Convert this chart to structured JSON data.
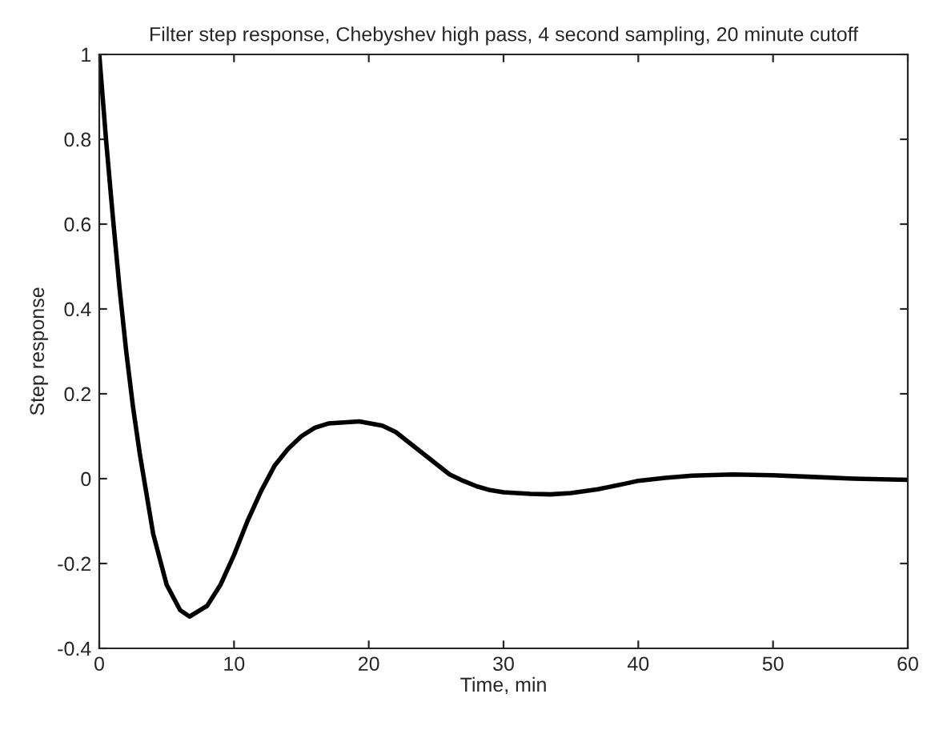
{
  "chart_data": {
    "type": "line",
    "title": "Filter step response, Chebyshev high pass, 4 second sampling, 20 minute cutoff",
    "xlabel": "Time, min",
    "ylabel": "Step response",
    "xlim": [
      0,
      60
    ],
    "ylim": [
      -0.4,
      1
    ],
    "xticks": [
      0,
      10,
      20,
      30,
      40,
      50,
      60
    ],
    "yticks": [
      {
        "value": -0.4,
        "label": "-0.4"
      },
      {
        "value": -0.2,
        "label": "-0.2"
      },
      0,
      0.2,
      0.4,
      0.6,
      0.8,
      1
    ],
    "grid": false,
    "legend": false,
    "series": [
      {
        "color": "#000000",
        "x": [
          0,
          0.5,
          1,
          1.5,
          2,
          2.5,
          3,
          4,
          5,
          6,
          6.7,
          8,
          9,
          10,
          11,
          12,
          13,
          14,
          15,
          16,
          17,
          19.3,
          21,
          22,
          23,
          24,
          25,
          26,
          27,
          28,
          29,
          30,
          32,
          33.5,
          35,
          37,
          39,
          40,
          42,
          44,
          47,
          50,
          53,
          56,
          60
        ],
        "values": [
          1,
          0.8,
          0.62,
          0.45,
          0.3,
          0.17,
          0.06,
          -0.13,
          -0.25,
          -0.31,
          -0.325,
          -0.3,
          -0.25,
          -0.18,
          -0.1,
          -0.03,
          0.03,
          0.07,
          0.1,
          0.12,
          0.13,
          0.135,
          0.125,
          0.11,
          0.085,
          0.06,
          0.035,
          0.01,
          -0.005,
          -0.018,
          -0.027,
          -0.032,
          -0.036,
          -0.037,
          -0.034,
          -0.025,
          -0.012,
          -0.005,
          0.002,
          0.007,
          0.01,
          0.008,
          0.004,
          0.0,
          -0.003
        ]
      }
    ]
  }
}
